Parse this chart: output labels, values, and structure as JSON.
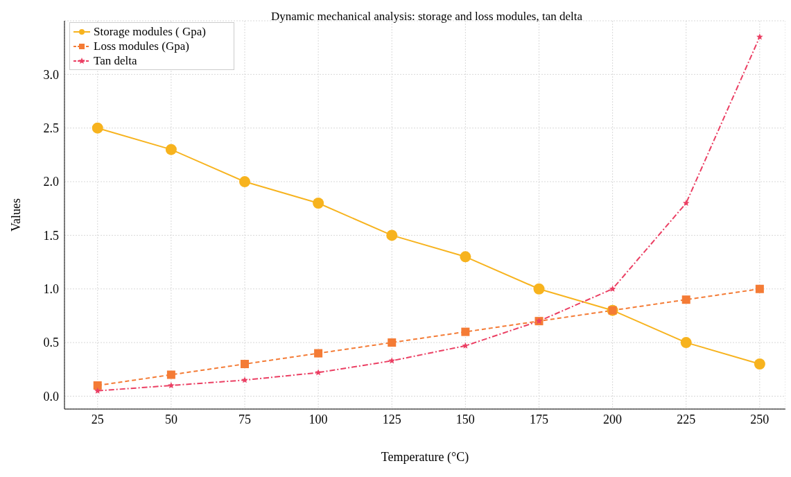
{
  "chart_data": {
    "type": "line",
    "title": "Dynamic mechanical analysis: storage and loss modules, tan delta",
    "xlabel": "Temperature (°C)",
    "ylabel": "Values",
    "x": [
      25,
      50,
      75,
      100,
      125,
      150,
      175,
      200,
      225,
      250
    ],
    "series": [
      {
        "name": "Storage modules ( Gpa)",
        "color": "#f7b31e",
        "marker": "circle",
        "line_style": "solid",
        "values": [
          2.5,
          2.3,
          2.0,
          1.8,
          1.5,
          1.3,
          1.0,
          0.8,
          0.5,
          0.3
        ]
      },
      {
        "name": "Loss modules (Gpa)",
        "color": "#f47b35",
        "marker": "square",
        "line_style": "dashed",
        "values": [
          0.1,
          0.2,
          0.3,
          0.4,
          0.5,
          0.6,
          0.7,
          0.8,
          0.9,
          1.0
        ]
      },
      {
        "name": "Tan delta",
        "color": "#eb3f63",
        "marker": "star",
        "line_style": "dashdot",
        "values": [
          0.05,
          0.1,
          0.15,
          0.22,
          0.33,
          0.47,
          0.7,
          1.0,
          1.8,
          3.35
        ]
      }
    ],
    "xlim": [
      13.75,
      258.75
    ],
    "xticks": [
      25,
      50,
      75,
      100,
      125,
      150,
      175,
      200,
      225,
      250
    ],
    "ylim": [
      -0.12,
      3.5
    ],
    "yticks": [
      {
        "value": 0,
        "label": "0.0"
      },
      0.5,
      {
        "value": 1,
        "label": "1.0"
      },
      1.5,
      {
        "value": 2,
        "label": "2.0"
      },
      2.5,
      {
        "value": 3,
        "label": "3.0"
      }
    ],
    "grid": true,
    "legend": "top left"
  }
}
